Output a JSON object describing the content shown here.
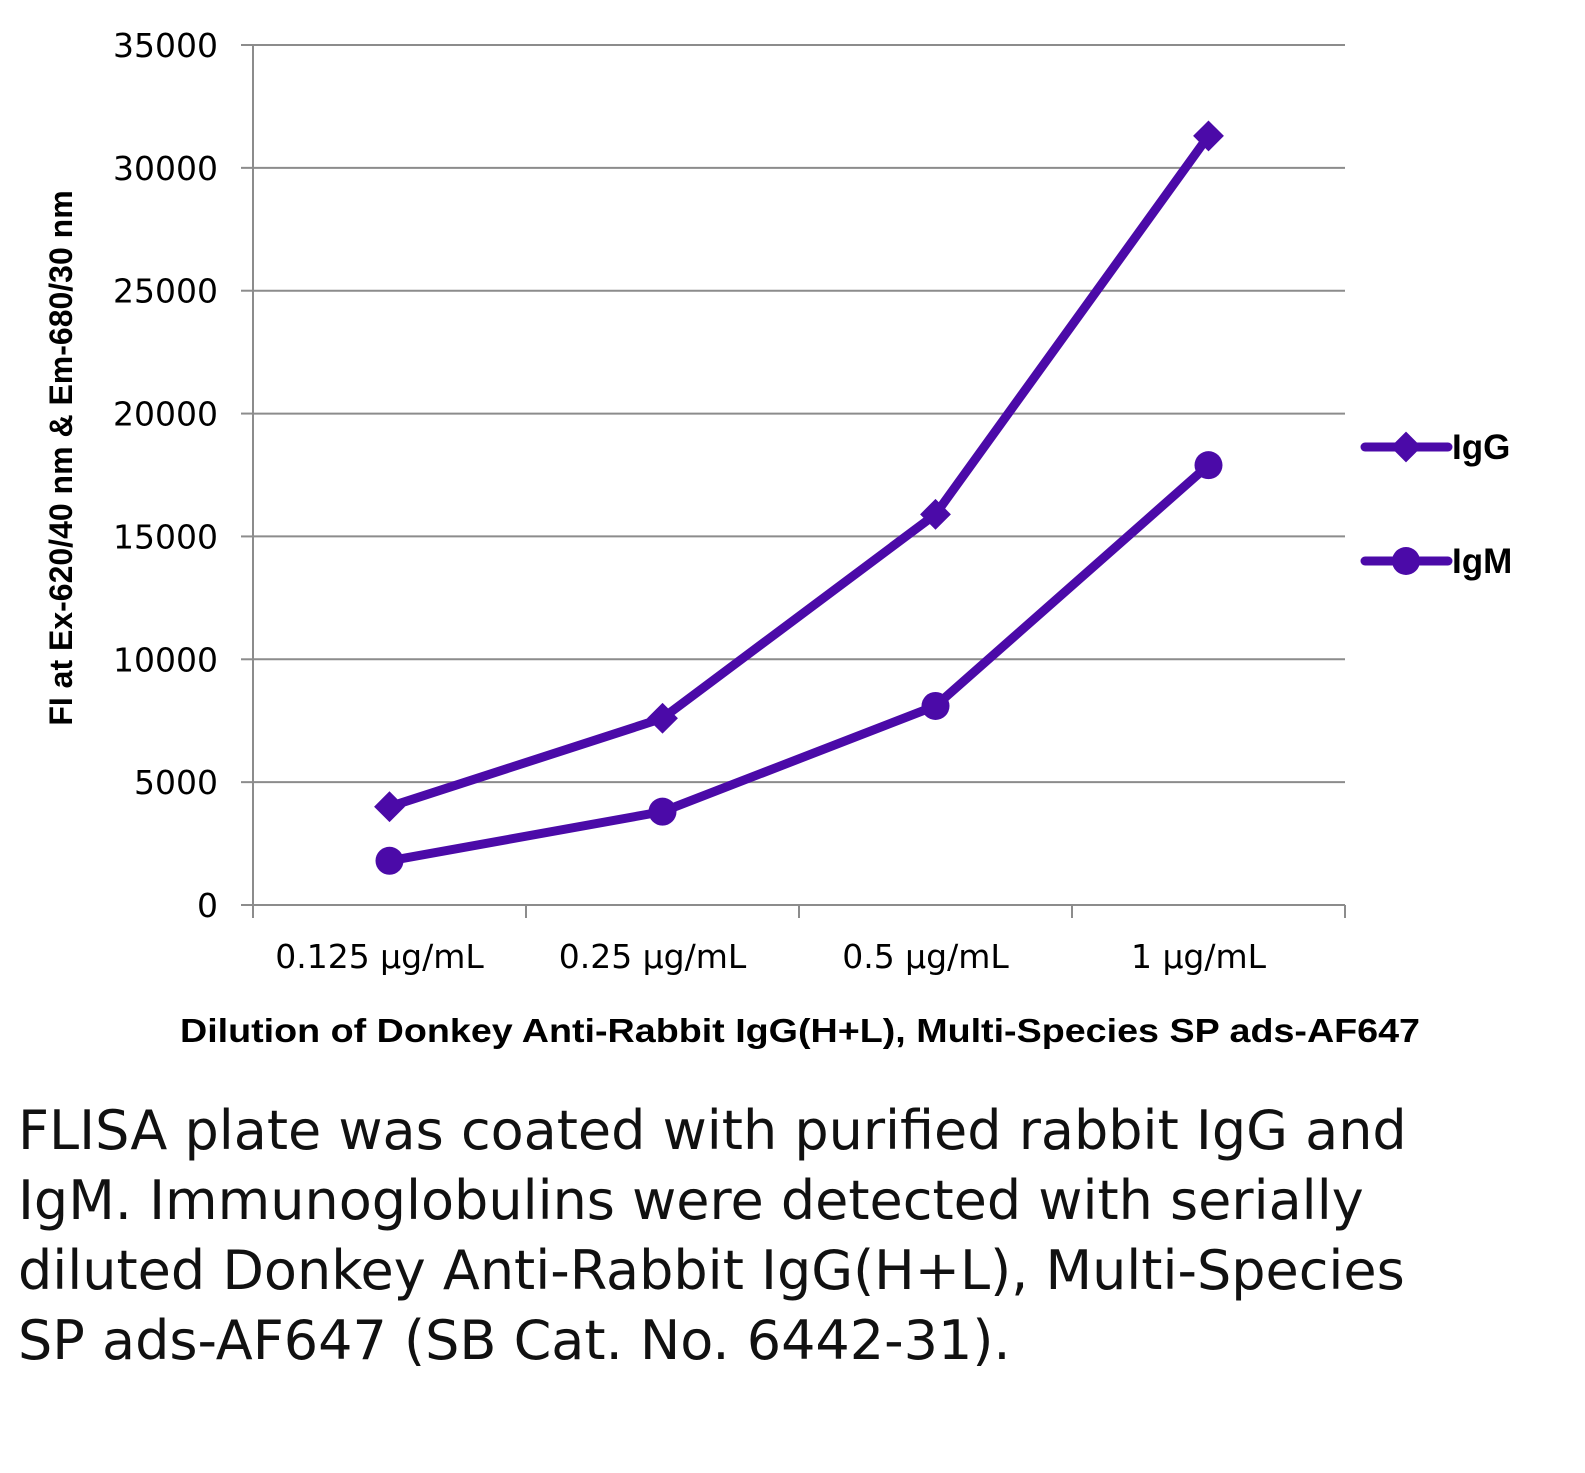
{
  "chart_data": {
    "type": "line",
    "title": "",
    "xlabel": "Dilution of Donkey Anti-Rabbit IgG(H+L), Multi-Species SP ads-AF647",
    "ylabel": "FI at Ex-620/40 nm & Em-680/30 nm",
    "categories": [
      "0.125 µg/mL",
      "0.25 µg/mL",
      "0.5 µg/mL",
      "1 µg/mL"
    ],
    "ylim": [
      0,
      35000
    ],
    "yticks": [
      0,
      5000,
      10000,
      15000,
      20000,
      25000,
      30000,
      35000
    ],
    "grid": true,
    "legend": "right",
    "series": [
      {
        "name": "IgG",
        "marker": "diamond",
        "values": [
          4000,
          7600,
          15900,
          31300
        ]
      },
      {
        "name": "IgM",
        "marker": "circle",
        "values": [
          1800,
          3800,
          8100,
          17900
        ]
      }
    ],
    "line_color": "#4b0aa8"
  },
  "caption": "FLISA plate was coated with purified rabbit IgG and IgM.  Immunoglobulins were detected with serially diluted Donkey Anti-Rabbit IgG(H+L), Multi-Species SP ads-AF647 (SB Cat. No. 6442-31)."
}
